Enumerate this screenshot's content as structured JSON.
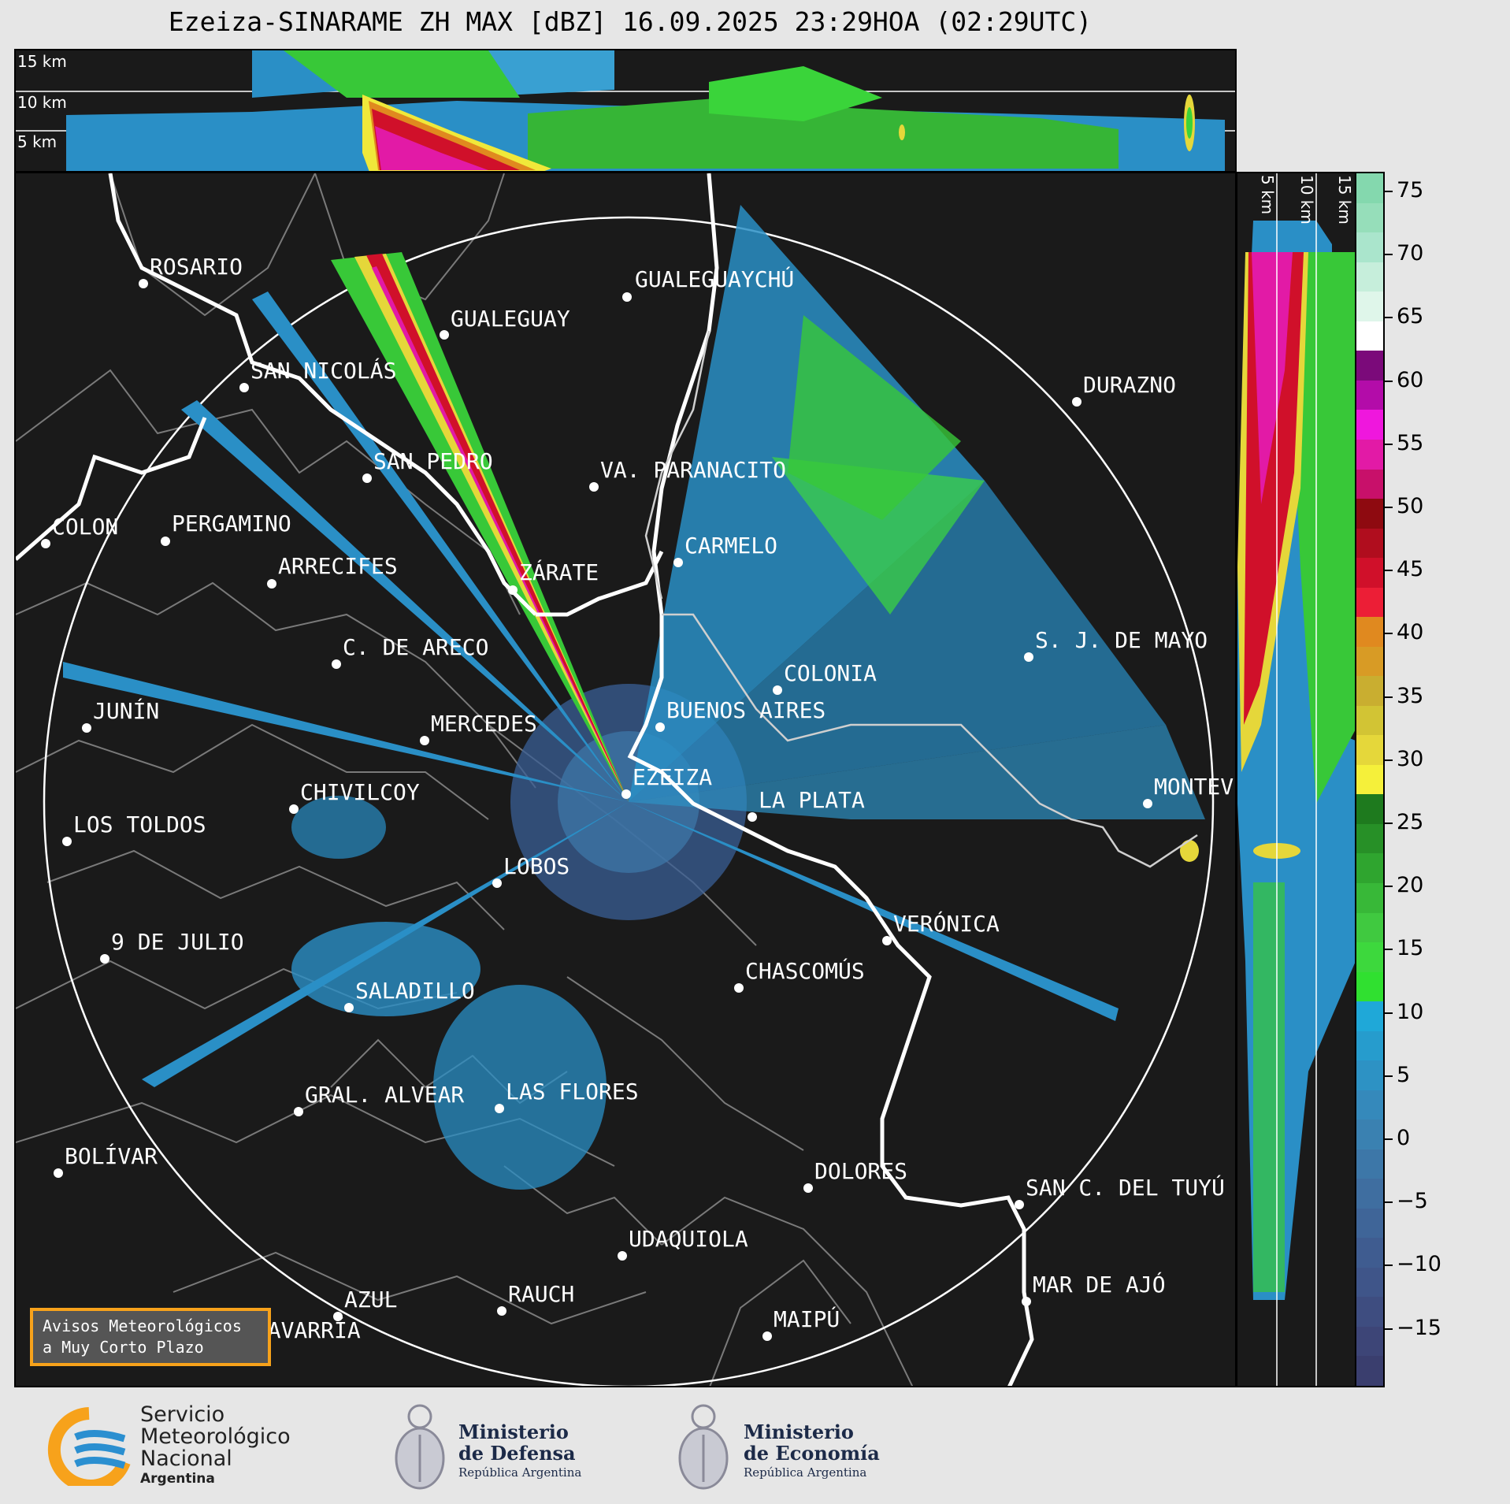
{
  "title": "Ezeiza-SINARAME ZH MAX [dBZ] 16.09.2025 23:29HOA (02:29UTC)",
  "top_panel": {
    "height_labels": [
      "15 km",
      "10 km",
      "5 km"
    ]
  },
  "side_panel": {
    "height_labels": [
      "5 km",
      "10 km",
      "15 km"
    ]
  },
  "cities": [
    {
      "name": "ROSARIO"
    },
    {
      "name": "GUALEGUAYCHÚ"
    },
    {
      "name": "GUALEGUAY"
    },
    {
      "name": "SAN NICOLÁS"
    },
    {
      "name": "DURAZNO"
    },
    {
      "name": "SAN PEDRO"
    },
    {
      "name": "VA. PARANACITO"
    },
    {
      "name": "COLON"
    },
    {
      "name": "PERGAMINO"
    },
    {
      "name": "CARMELO"
    },
    {
      "name": "ARRECIFES"
    },
    {
      "name": "ZÁRATE"
    },
    {
      "name": "S. J. DE MAYO"
    },
    {
      "name": "C. DE ARECO"
    },
    {
      "name": "COLONIA"
    },
    {
      "name": "JUNÍN"
    },
    {
      "name": "BUENOS AIRES"
    },
    {
      "name": "MERCEDES"
    },
    {
      "name": "MONTEVIDEO"
    },
    {
      "name": "EZEIZA"
    },
    {
      "name": "CHIVILCOY"
    },
    {
      "name": "LA PLATA"
    },
    {
      "name": "LOS TOLDOS"
    },
    {
      "name": "LOBOS"
    },
    {
      "name": "VERÓNICA"
    },
    {
      "name": "9 DE JULIO"
    },
    {
      "name": "CHASCOMÚS"
    },
    {
      "name": "SALADILLO"
    },
    {
      "name": "GRAL. ALVEAR"
    },
    {
      "name": "LAS FLORES"
    },
    {
      "name": "BOLÍVAR"
    },
    {
      "name": "DOLORES"
    },
    {
      "name": "SAN C. DEL TUYÚ"
    },
    {
      "name": "UDAQUIOLA"
    },
    {
      "name": "MAR DE AJÓ"
    },
    {
      "name": "AZUL"
    },
    {
      "name": "RAUCH"
    },
    {
      "name": "OLAVARRÍA"
    },
    {
      "name": "MAIPÚ"
    }
  ],
  "colorbar": {
    "ticks": [
      "75",
      "70",
      "65",
      "60",
      "55",
      "50",
      "45",
      "40",
      "35",
      "30",
      "25",
      "20",
      "15",
      "10",
      "5",
      "0",
      "−5",
      "−10",
      "−15"
    ],
    "colors": [
      "#3a3e6e",
      "#3d4577",
      "#3e4d80",
      "#3f5589",
      "#3f5c90",
      "#3f6598",
      "#3f6ea0",
      "#3d77a8",
      "#3a81b1",
      "#3589bb",
      "#2d92c4",
      "#269ccd",
      "#1fa8d8",
      "#30e030",
      "#3dd83d",
      "#40c940",
      "#38b838",
      "#2fa52f",
      "#279027",
      "#1e7a1e",
      "#f5f03a",
      "#e5d73a",
      "#d2c434",
      "#c9ae30",
      "#d89b25",
      "#e0891f",
      "#ec1e36",
      "#d0102a",
      "#b00d1e",
      "#8e0a10",
      "#c8106a",
      "#e21aa6",
      "#ef17dd",
      "#b30ca9",
      "#7b0a7a",
      "#ffffff",
      "#dff6ea",
      "#c6eedb",
      "#aae5cc",
      "#96deba",
      "#84d8ae"
    ]
  },
  "avisos": {
    "line1": "Avisos Meteorológicos",
    "line2": "a Muy Corto Plazo"
  },
  "footer": {
    "smn_line1": "Servicio",
    "smn_line2": "Meteorológico",
    "smn_line3": "Nacional",
    "smn_line4": "Argentina",
    "defensa_line1": "Ministerio",
    "defensa_line2": "de Defensa",
    "defensa_sub": "República Argentina",
    "economia_line1": "Ministerio",
    "economia_line2": "de Economía",
    "economia_sub": "República Argentina"
  }
}
